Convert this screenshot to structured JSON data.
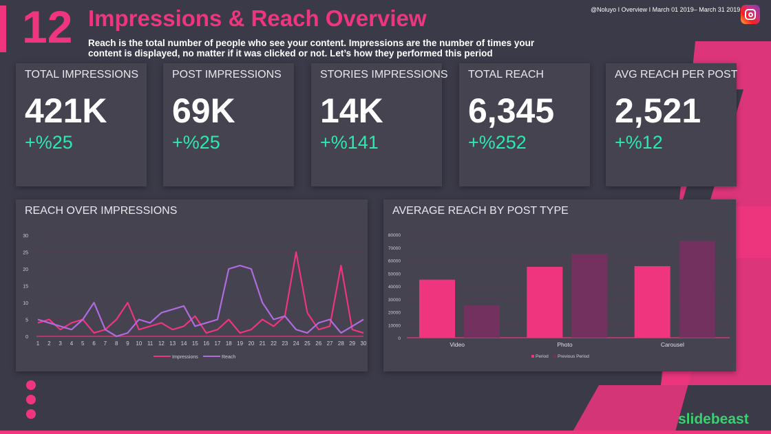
{
  "header": {
    "number": "12",
    "title": "Impressions & Reach Overview",
    "description": "Reach is the total number of people who see your content. Impressions are the number of times your content is displayed, no matter if it was clicked or not. Let’s how they performed this period",
    "meta": "@Noluyo I Overview I March 01 2019– March 31 2019",
    "icon": "instagram-icon"
  },
  "colors": {
    "accent": "#f0357f",
    "positive": "#2ee8b0",
    "reach": "#b06be0",
    "previous": "#7a2e60",
    "background": "#3b3a48",
    "card": "#44434f",
    "brand": "#3bd16f"
  },
  "kpis": [
    {
      "label": "TOTAL IMPRESSIONS",
      "value": "421K",
      "change": "+%25"
    },
    {
      "label": "POST IMPRESSIONS",
      "value": "69K",
      "change": "+%25"
    },
    {
      "label": "STORIES IMPRESSIONS",
      "value": "14K",
      "change": "+%141"
    },
    {
      "label": "TOTAL REACH",
      "value": "6,345",
      "change": "+%252"
    },
    {
      "label": "AVG REACH PER POST",
      "value": "2,521",
      "change": "+%12"
    }
  ],
  "chart_data": [
    {
      "type": "line",
      "title": "REACH OVER IMPRESSIONS",
      "x": [
        1,
        2,
        3,
        4,
        5,
        6,
        7,
        8,
        9,
        10,
        11,
        12,
        13,
        14,
        15,
        16,
        17,
        18,
        19,
        20,
        21,
        22,
        23,
        24,
        25,
        26,
        27,
        28,
        29,
        30
      ],
      "ylim": [
        0,
        30
      ],
      "yticks": [
        0,
        5,
        10,
        15,
        20,
        25,
        30
      ],
      "grid": true,
      "legend": "bottom",
      "series": [
        {
          "name": "Impressions",
          "color": "#f0357f",
          "values": [
            4,
            5,
            2,
            4,
            5,
            1,
            2,
            5,
            10,
            2,
            3,
            4,
            2,
            3,
            6,
            1,
            2,
            5,
            1,
            2,
            5,
            3,
            6,
            25,
            7,
            2,
            3,
            21,
            2,
            1
          ]
        },
        {
          "name": "Reach",
          "color": "#b06be0",
          "values": [
            5,
            4,
            3,
            2,
            5,
            10,
            2,
            0,
            1,
            5,
            4,
            7,
            8,
            9,
            3,
            4,
            5,
            20,
            21,
            20,
            10,
            5,
            6,
            2,
            1,
            4,
            5,
            1,
            3,
            5
          ]
        }
      ]
    },
    {
      "type": "bar",
      "title": "AVERAGE REACH BY POST TYPE",
      "categories": [
        "Video",
        "Photo",
        "Carousel"
      ],
      "ylim": [
        0,
        80000
      ],
      "yticks": [
        0,
        10000,
        20000,
        30000,
        40000,
        50000,
        60000,
        70000,
        80000
      ],
      "grid": true,
      "legend": "bottom",
      "series": [
        {
          "name": "Period",
          "color": "#f0357f",
          "values": [
            45000,
            55000,
            55500
          ]
        },
        {
          "name": "Previous Period",
          "color": "#7a2e60",
          "values": [
            25000,
            65000,
            75000
          ]
        }
      ]
    }
  ],
  "footer": {
    "logo": "slidebeast"
  }
}
